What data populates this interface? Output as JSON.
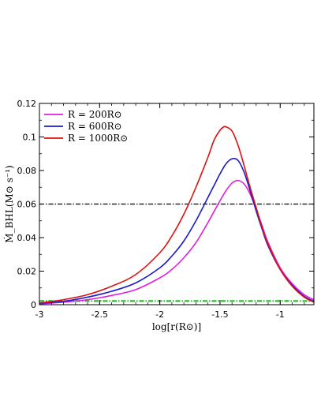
{
  "chart_data": {
    "type": "line",
    "xlabel": "log[r(R⊙)]",
    "ylabel": "Ṁ_BHL(M⊙ s⁻¹)",
    "xlim": [
      -3,
      -0.72
    ],
    "ylim": [
      0,
      0.12
    ],
    "xticks": [
      "-3",
      "-2.5",
      "-2",
      "-1.5",
      "-1"
    ],
    "xtick_values": [
      -3,
      -2.5,
      -2,
      -1.5,
      -1
    ],
    "yticks": [
      "0",
      "0.02",
      "0.04",
      "0.06",
      "0.08",
      "0.1",
      "0.12"
    ],
    "ytick_values": [
      0,
      0.02,
      0.04,
      0.06,
      0.08,
      0.1,
      0.12
    ],
    "legend_placement": "top-left",
    "series": [
      {
        "name": "R = 200R⊙",
        "color": "#e020e0",
        "x": [
          -3,
          -2.8,
          -2.6,
          -2.4,
          -2.2,
          -2.0,
          -1.9,
          -1.8,
          -1.7,
          -1.6,
          -1.5,
          -1.45,
          -1.4,
          -1.35,
          -1.3,
          -1.25,
          -1.2,
          -1.15,
          -1.1,
          -1.0,
          -0.9,
          -0.8,
          -0.72
        ],
        "values": [
          0.0005,
          0.0015,
          0.003,
          0.0055,
          0.009,
          0.016,
          0.021,
          0.028,
          0.037,
          0.049,
          0.062,
          0.068,
          0.0725,
          0.074,
          0.072,
          0.066,
          0.057,
          0.047,
          0.037,
          0.022,
          0.0125,
          0.006,
          0.003
        ]
      },
      {
        "name": "R = 600R⊙",
        "color": "#1a1acc",
        "x": [
          -3,
          -2.8,
          -2.6,
          -2.4,
          -2.2,
          -2.0,
          -1.9,
          -1.8,
          -1.7,
          -1.6,
          -1.55,
          -1.5,
          -1.45,
          -1.4,
          -1.35,
          -1.3,
          -1.25,
          -1.2,
          -1.15,
          -1.1,
          -1.0,
          -0.9,
          -0.8,
          -0.72
        ],
        "values": [
          0.0008,
          0.002,
          0.0045,
          0.008,
          0.013,
          0.022,
          0.029,
          0.038,
          0.05,
          0.064,
          0.071,
          0.078,
          0.084,
          0.087,
          0.086,
          0.079,
          0.068,
          0.056,
          0.045,
          0.035,
          0.021,
          0.0115,
          0.005,
          0.002
        ]
      },
      {
        "name": "R = 1000R⊙",
        "color": "#dd1111",
        "x": [
          -3,
          -2.8,
          -2.6,
          -2.4,
          -2.2,
          -2.0,
          -1.9,
          -1.8,
          -1.7,
          -1.6,
          -1.55,
          -1.5,
          -1.47,
          -1.45,
          -1.4,
          -1.35,
          -1.3,
          -1.25,
          -1.2,
          -1.15,
          -1.1,
          -1.0,
          -0.9,
          -0.8,
          -0.72
        ],
        "values": [
          0.001,
          0.003,
          0.006,
          0.011,
          0.018,
          0.031,
          0.041,
          0.054,
          0.07,
          0.088,
          0.098,
          0.104,
          0.106,
          0.106,
          0.1035,
          0.095,
          0.083,
          0.07,
          0.058,
          0.046,
          0.036,
          0.021,
          0.011,
          0.0045,
          0.0015
        ]
      }
    ],
    "reference_lines": [
      {
        "y": 0.06,
        "color": "#000000",
        "style": "dash-dot"
      },
      {
        "y": 0.0022,
        "color": "#22bb22",
        "style": "dash-dot"
      }
    ]
  }
}
